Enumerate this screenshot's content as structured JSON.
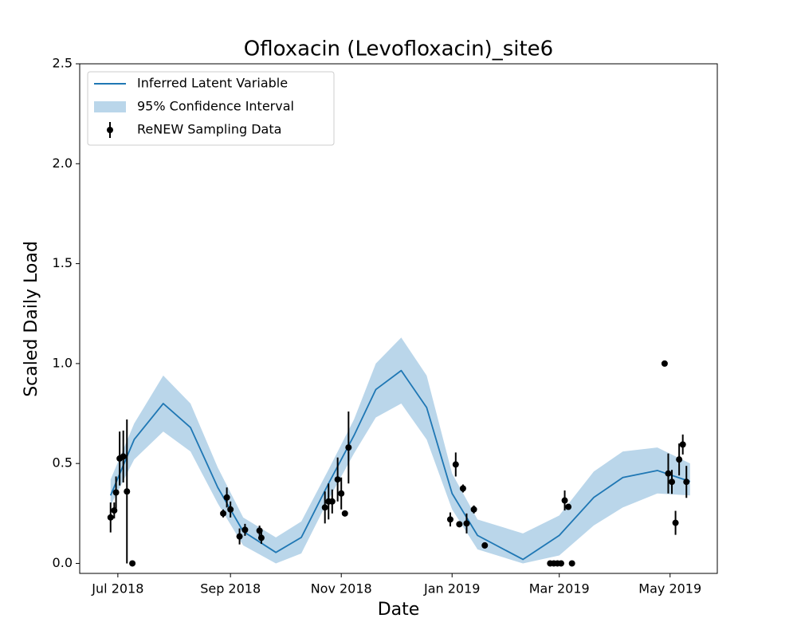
{
  "chart_data": {
    "type": "line",
    "title": "Ofloxacin (Levofloxacin)_site6",
    "x_label": "Date",
    "y_label": "Scaled Daily Load",
    "xlim": [
      "2018-06-10",
      "2019-05-27"
    ],
    "ylim": [
      -0.05,
      2.5
    ],
    "xticks": [
      {
        "value": "2018-07-01",
        "label": "Jul 2018"
      },
      {
        "value": "2018-09-01",
        "label": "Sep 2018"
      },
      {
        "value": "2018-11-01",
        "label": "Nov 2018"
      },
      {
        "value": "2019-01-01",
        "label": "Jan 2019"
      },
      {
        "value": "2019-03-01",
        "label": "Mar 2019"
      },
      {
        "value": "2019-05-01",
        "label": "May 2019"
      }
    ],
    "yticks": [
      {
        "value": 0,
        "label": "0.0"
      },
      0.5,
      {
        "value": 1,
        "label": "1.0"
      },
      1.5,
      {
        "value": 2,
        "label": "2.0"
      },
      2.5
    ],
    "grid": false,
    "legend": "upper left",
    "series": [
      {
        "name": "Inferred Latent Variable",
        "type": "line",
        "color": "#1f77b4",
        "x": [
          "2018-06-27",
          "2018-07-10",
          "2018-07-26",
          "2018-08-10",
          "2018-08-25",
          "2018-09-08",
          "2018-09-26",
          "2018-10-10",
          "2018-10-25",
          "2018-11-08",
          "2018-11-20",
          "2018-12-04",
          "2018-12-18",
          "2019-01-01",
          "2019-01-15",
          "2019-02-09",
          "2019-03-01",
          "2019-03-20",
          "2019-04-05",
          "2019-04-24",
          "2019-05-12"
        ],
        "values": [
          0.34,
          0.62,
          0.8,
          0.68,
          0.38,
          0.16,
          0.055,
          0.13,
          0.4,
          0.64,
          0.87,
          0.965,
          0.78,
          0.35,
          0.14,
          0.02,
          0.14,
          0.33,
          0.43,
          0.465,
          0.41
        ]
      },
      {
        "name": "95% Confidence Interval",
        "type": "band",
        "color": "#bad6ea",
        "x": [
          "2018-06-27",
          "2018-07-10",
          "2018-07-26",
          "2018-08-10",
          "2018-08-25",
          "2018-09-08",
          "2018-09-26",
          "2018-10-10",
          "2018-10-25",
          "2018-11-08",
          "2018-11-20",
          "2018-12-04",
          "2018-12-18",
          "2019-01-01",
          "2019-01-15",
          "2019-02-09",
          "2019-03-01",
          "2019-03-20",
          "2019-04-05",
          "2019-04-24",
          "2019-05-12"
        ],
        "lower": [
          0.29,
          0.52,
          0.66,
          0.56,
          0.3,
          0.09,
          0,
          0.05,
          0.32,
          0.55,
          0.73,
          0.8,
          0.62,
          0.27,
          0.07,
          0,
          0.04,
          0.19,
          0.28,
          0.35,
          0.34
        ],
        "upper": [
          0.42,
          0.7,
          0.94,
          0.8,
          0.48,
          0.23,
          0.13,
          0.21,
          0.47,
          0.72,
          1.0,
          1.13,
          0.94,
          0.45,
          0.22,
          0.15,
          0.24,
          0.46,
          0.56,
          0.58,
          0.5
        ]
      },
      {
        "name": "ReNEW Sampling Data",
        "type": "errorbar",
        "color": "#000000",
        "x": [
          "2018-06-27",
          "2018-06-29",
          "2018-06-30",
          "2018-07-02",
          "2018-07-04",
          "2018-07-06",
          "2018-07-09",
          "2018-08-28",
          "2018-08-30",
          "2018-09-01",
          "2018-09-06",
          "2018-09-09",
          "2018-09-17",
          "2018-09-18",
          "2018-10-23",
          "2018-10-25",
          "2018-10-27",
          "2018-10-30",
          "2018-11-01",
          "2018-11-03",
          "2018-11-05",
          "2018-12-31",
          "2019-01-03",
          "2019-01-05",
          "2019-01-07",
          "2019-01-09",
          "2019-01-13",
          "2019-01-19",
          "2019-02-24",
          "2019-02-26",
          "2019-02-28",
          "2019-03-02",
          "2019-03-04",
          "2019-03-06",
          "2019-03-08",
          "2019-04-28",
          "2019-04-30",
          "2019-05-02",
          "2019-05-04",
          "2019-05-06",
          "2019-05-08",
          "2019-05-10"
        ],
        "values": [
          0.23,
          0.265,
          0.355,
          0.525,
          0.535,
          0.36,
          0,
          0.25,
          0.33,
          0.27,
          0.135,
          0.168,
          0.164,
          0.128,
          0.28,
          0.31,
          0.31,
          0.42,
          0.35,
          0.25,
          0.58,
          0.22,
          0.495,
          0.196,
          0.375,
          0.2,
          0.27,
          0.09,
          0,
          0,
          0,
          0,
          0.315,
          0.283,
          0,
          1.0,
          0.45,
          0.408,
          0.203,
          0.52,
          0.595,
          0.408
        ],
        "errors": [
          0.075,
          0.04,
          0.08,
          0.135,
          0.13,
          0.36,
          0,
          0.02,
          0.05,
          0.04,
          0.04,
          0.03,
          0.025,
          0.03,
          0.08,
          0.09,
          0.06,
          0.11,
          0.08,
          0.01,
          0.18,
          0.035,
          0.06,
          0.015,
          0.02,
          0.05,
          0.02,
          0.015,
          0,
          0,
          0,
          0,
          0.05,
          0.01,
          0,
          0,
          0.1,
          0.06,
          0.06,
          0.08,
          0.05,
          0.08
        ]
      }
    ]
  }
}
